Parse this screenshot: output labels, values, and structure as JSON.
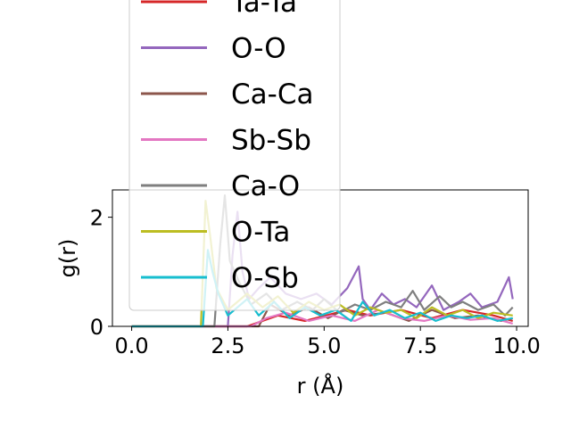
{
  "chart_data": {
    "type": "line",
    "xlabel": "r (Å)",
    "ylabel": "g(r)",
    "xlim": [
      -0.5,
      10.3
    ],
    "ylim": [
      0,
      2.5
    ],
    "xticks": [
      0.0,
      2.5,
      5.0,
      7.5,
      10.0
    ],
    "xtick_labels": [
      "0.0",
      "2.5",
      "5.0",
      "7.5",
      "10.0"
    ],
    "yticks": [
      0,
      2
    ],
    "ytick_labels": [
      "0",
      "2"
    ],
    "grid": false,
    "legend_placement": "upper-center, overlapping plot",
    "series": [
      {
        "name": "Ta-Ta",
        "color": "#d62728",
        "x": [
          0,
          3.0,
          3.8,
          4.5,
          5.6,
          6.2,
          7.0,
          7.8,
          8.6,
          9.4,
          9.9
        ],
        "y": [
          0,
          0,
          0.2,
          0.1,
          0.3,
          0.2,
          0.3,
          0.15,
          0.3,
          0.2,
          0.1
        ]
      },
      {
        "name": "O-O",
        "color": "#9467bd",
        "x": [
          0,
          2.5,
          2.62,
          2.75,
          2.88,
          3.05,
          3.3,
          3.6,
          4.0,
          4.4,
          4.8,
          5.2,
          5.6,
          5.9,
          6.0,
          6.2,
          6.5,
          6.8,
          7.1,
          7.4,
          7.8,
          8.1,
          8.5,
          8.8,
          9.1,
          9.5,
          9.8,
          9.9
        ],
        "y": [
          0,
          0,
          1.3,
          2.1,
          1.0,
          0.5,
          0.7,
          0.9,
          0.6,
          0.5,
          0.6,
          0.4,
          0.7,
          1.1,
          0.5,
          0.3,
          0.6,
          0.4,
          0.5,
          0.35,
          0.75,
          0.3,
          0.45,
          0.6,
          0.35,
          0.45,
          0.9,
          0.5
        ]
      },
      {
        "name": "Ca-Ca",
        "color": "#8c564b",
        "x": [
          0,
          3.3,
          3.6,
          4.1,
          4.6,
          5.1,
          5.5,
          6.0,
          6.6,
          7.2,
          7.8,
          8.4,
          9.0,
          9.6,
          9.9
        ],
        "y": [
          0,
          0,
          0.4,
          0.2,
          0.35,
          0.15,
          0.3,
          0.2,
          0.25,
          0.1,
          0.3,
          0.15,
          0.2,
          0.1,
          0.15
        ]
      },
      {
        "name": "Sb-Sb",
        "color": "#e377c2",
        "x": [
          0,
          3.1,
          3.5,
          4.0,
          4.6,
          5.2,
          5.8,
          6.4,
          7.0,
          7.6,
          8.2,
          8.8,
          9.4,
          9.9
        ],
        "y": [
          0,
          0,
          0.15,
          0.25,
          0.1,
          0.2,
          0.1,
          0.3,
          0.15,
          0.1,
          0.2,
          0.12,
          0.15,
          0.05
        ]
      },
      {
        "name": "Ca-O",
        "color": "#7f7f7f",
        "x": [
          0,
          2.15,
          2.3,
          2.42,
          2.55,
          2.8,
          3.1,
          3.5,
          3.9,
          4.3,
          4.7,
          5.0,
          5.4,
          5.8,
          6.2,
          6.6,
          7.0,
          7.3,
          7.6,
          8.0,
          8.3,
          8.6,
          9.0,
          9.4,
          9.7,
          9.9
        ],
        "y": [
          0,
          0,
          1.5,
          2.4,
          1.2,
          0.8,
          0.4,
          0.6,
          0.3,
          0.45,
          0.3,
          0.5,
          0.25,
          0.4,
          0.3,
          0.45,
          0.35,
          0.65,
          0.3,
          0.55,
          0.35,
          0.45,
          0.3,
          0.4,
          0.2,
          0.35
        ]
      },
      {
        "name": "O-Ta",
        "color": "#bcbd22",
        "x": [
          0,
          1.8,
          1.92,
          2.05,
          2.2,
          2.5,
          3.0,
          3.4,
          3.8,
          4.2,
          4.6,
          5.0,
          5.4,
          5.8,
          6.2,
          6.6,
          7.0,
          7.4,
          7.8,
          8.2,
          8.6,
          9.0,
          9.4,
          9.9
        ],
        "y": [
          0,
          0,
          2.3,
          1.6,
          0.7,
          0.3,
          0.6,
          0.35,
          0.55,
          0.25,
          0.45,
          0.3,
          0.4,
          0.2,
          0.35,
          0.25,
          0.3,
          0.15,
          0.35,
          0.2,
          0.3,
          0.15,
          0.25,
          0.2
        ]
      },
      {
        "name": "O-Sb",
        "color": "#17becf",
        "x": [
          0,
          1.85,
          1.98,
          2.1,
          2.25,
          2.5,
          3.0,
          3.3,
          3.7,
          4.1,
          4.5,
          4.9,
          5.3,
          5.7,
          6.0,
          6.3,
          6.7,
          7.1,
          7.5,
          7.9,
          8.3,
          8.7,
          9.1,
          9.5,
          9.9
        ],
        "y": [
          0,
          0,
          1.4,
          1.0,
          0.6,
          0.2,
          0.5,
          0.2,
          0.45,
          0.15,
          0.35,
          0.2,
          0.3,
          0.1,
          0.45,
          0.2,
          0.3,
          0.15,
          0.25,
          0.1,
          0.2,
          0.15,
          0.2,
          0.1,
          0.15
        ]
      }
    ]
  }
}
